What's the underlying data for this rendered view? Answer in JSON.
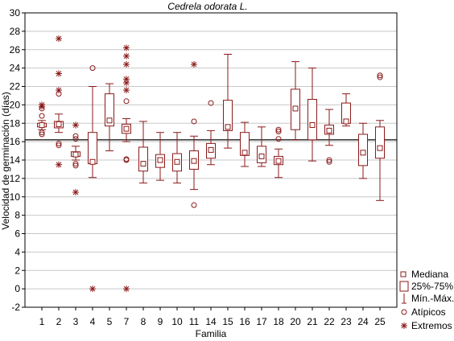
{
  "chart_data": {
    "type": "boxplot",
    "title": "Cedrela odorata L.",
    "xlabel": "Familia",
    "ylabel": "Velocidad de germinación (días)",
    "ylim": [
      -2,
      30
    ],
    "yticks": [
      -2,
      0,
      2,
      4,
      6,
      8,
      10,
      12,
      14,
      16,
      18,
      20,
      22,
      24,
      26,
      28,
      30
    ],
    "grid": true,
    "legend_position": "bottom-right",
    "reference_line": 16.2,
    "categories": [
      "1",
      "2",
      "3",
      "4",
      "5",
      "7",
      "8",
      "9",
      "10",
      "11",
      "14",
      "15",
      "16",
      "17",
      "18",
      "20",
      "21",
      "22",
      "23",
      "24",
      "25"
    ],
    "boxes": [
      {
        "category": "1",
        "median": 17.8,
        "q1": 17.6,
        "q3": 18.0,
        "min": 17.3,
        "max": 18.3,
        "outliers": [
          16.8,
          17.0,
          18.8,
          19.6
        ],
        "extremes": [
          19.8,
          20.0
        ]
      },
      {
        "category": "2",
        "median": 17.9,
        "q1": 17.5,
        "q3": 18.2,
        "min": 17.0,
        "max": 19.0,
        "outliers": [
          15.6,
          15.8,
          21.2
        ],
        "extremes": [
          13.5,
          21.6,
          23.4,
          27.2
        ]
      },
      {
        "category": "3",
        "median": 14.6,
        "q1": 14.4,
        "q3": 14.9,
        "min": 14.0,
        "max": 15.5,
        "outliers": [
          13.4,
          13.6,
          16.3,
          16.6
        ],
        "extremes": [
          10.5,
          17.8
        ]
      },
      {
        "category": "4",
        "median": 13.8,
        "q1": 13.6,
        "q3": 17.0,
        "min": 12.1,
        "max": 22.0,
        "outliers": [
          24.0
        ],
        "extremes": [
          0.0
        ]
      },
      {
        "category": "5",
        "median": 18.3,
        "q1": 17.7,
        "q3": 21.2,
        "min": 15.0,
        "max": 22.3,
        "outliers": [],
        "extremes": []
      },
      {
        "category": "7",
        "median": 17.4,
        "q1": 16.9,
        "q3": 17.9,
        "min": 16.0,
        "max": 18.5,
        "outliers": [
          14.0,
          14.1,
          20.4
        ],
        "extremes": [
          0.0,
          21.6,
          22.4,
          22.8,
          24.4,
          25.3,
          26.2
        ]
      },
      {
        "category": "8",
        "median": 13.6,
        "q1": 12.8,
        "q3": 15.4,
        "min": 11.5,
        "max": 18.2,
        "outliers": [],
        "extremes": []
      },
      {
        "category": "9",
        "median": 14.0,
        "q1": 13.2,
        "q3": 14.6,
        "min": 11.8,
        "max": 17.0,
        "outliers": [],
        "extremes": []
      },
      {
        "category": "10",
        "median": 13.8,
        "q1": 12.8,
        "q3": 14.7,
        "min": 11.5,
        "max": 17.0,
        "outliers": [],
        "extremes": []
      },
      {
        "category": "11",
        "median": 13.9,
        "q1": 13.0,
        "q3": 15.0,
        "min": 10.8,
        "max": 16.6,
        "outliers": [
          9.1,
          18.2
        ],
        "extremes": [
          24.4
        ]
      },
      {
        "category": "14",
        "median": 15.1,
        "q1": 14.2,
        "q3": 15.8,
        "min": 13.5,
        "max": 17.2,
        "outliers": [
          20.2
        ],
        "extremes": []
      },
      {
        "category": "15",
        "median": 17.6,
        "q1": 17.2,
        "q3": 20.5,
        "min": 15.3,
        "max": 25.5,
        "outliers": [],
        "extremes": []
      },
      {
        "category": "16",
        "median": 14.8,
        "q1": 14.5,
        "q3": 17.0,
        "min": 13.3,
        "max": 18.1,
        "outliers": [],
        "extremes": []
      },
      {
        "category": "17",
        "median": 14.4,
        "q1": 13.7,
        "q3": 15.5,
        "min": 13.3,
        "max": 17.6,
        "outliers": [],
        "extremes": []
      },
      {
        "category": "18",
        "median": 13.9,
        "q1": 13.5,
        "q3": 14.4,
        "min": 12.1,
        "max": 15.2,
        "outliers": [
          16.3,
          17.1,
          17.3
        ],
        "extremes": []
      },
      {
        "category": "20",
        "median": 19.6,
        "q1": 17.3,
        "q3": 21.7,
        "min": 16.2,
        "max": 24.7,
        "outliers": [],
        "extremes": []
      },
      {
        "category": "21",
        "median": 17.8,
        "q1": 16.2,
        "q3": 20.6,
        "min": 13.9,
        "max": 24.0,
        "outliers": [],
        "extremes": []
      },
      {
        "category": "22",
        "median": 17.2,
        "q1": 16.8,
        "q3": 17.8,
        "min": 15.6,
        "max": 19.5,
        "outliers": [
          13.8,
          14.0
        ],
        "extremes": []
      },
      {
        "category": "23",
        "median": 18.2,
        "q1": 18.0,
        "q3": 20.2,
        "min": 17.7,
        "max": 21.2,
        "outliers": [],
        "extremes": []
      },
      {
        "category": "24",
        "median": 14.8,
        "q1": 13.4,
        "q3": 16.8,
        "min": 12.0,
        "max": 18.0,
        "outliers": [],
        "extremes": []
      },
      {
        "category": "25",
        "median": 15.3,
        "q1": 14.2,
        "q3": 17.6,
        "min": 9.6,
        "max": 18.3,
        "outliers": [
          23.0,
          23.2
        ],
        "extremes": []
      }
    ],
    "legend": [
      "Mediana",
      "25%-75%",
      "Mín.-Máx.",
      "Atípicos",
      "Extremos"
    ],
    "colors": {
      "series": "#8b1a1a",
      "grid": "#c8c8c8",
      "reference_line": "#404040",
      "axis": "#000000"
    }
  }
}
